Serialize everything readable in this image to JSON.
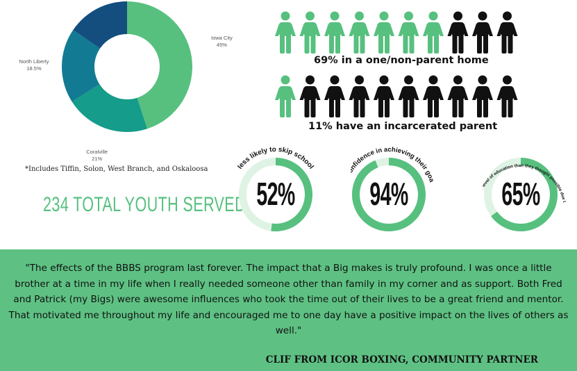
{
  "chart_data": [
    {
      "type": "pie",
      "labels": [
        "Iowa City",
        "Coralville",
        "North Liberty",
        ""
      ],
      "values": [
        45,
        21,
        18.5,
        15.5
      ],
      "value_labels": [
        "45%",
        "21%",
        "18.5%",
        "15.5%"
      ],
      "colors": [
        "#57c07f",
        "#159c8a",
        "#137a93",
        "#134e7f"
      ]
    },
    {
      "type": "pie",
      "title": "less likely to skip school",
      "values": [
        52
      ],
      "value_label": "52%",
      "colors": [
        "#57c07f",
        "#dff3e5"
      ]
    },
    {
      "type": "pie",
      "title": "felt confidence in achieving their goals",
      "values": [
        94
      ],
      "value_label": "94%",
      "colors": [
        "#57c07f",
        "#dff3e5"
      ]
    },
    {
      "type": "pie",
      "title": "achieved a higher level of education than they thought possible due to their Big",
      "values": [
        65
      ],
      "value_label": "65%",
      "colors": [
        "#57c07f",
        "#dff3e5"
      ]
    }
  ],
  "footnote": "*Includes Tiffin, Solon, West Branch, and Oskaloosa",
  "total_served": "234 TOTAL YOUTH SERVED",
  "people_rows": [
    {
      "caption": "69% in a one/non-parent home",
      "green_count": 7,
      "total": 10
    },
    {
      "caption": "11% have an incarcerated parent",
      "green_count": 1,
      "total": 10
    }
  ],
  "quote": "\"The effects of the BBBS program last forever. The impact that a Big makes is truly profound. I was once a little brother at a time in my life when I really needed someone other than family in my corner and as support. Both Fred and Patrick (my Bigs) were awesome influences who took the time out of their lives to be a great friend and mentor. That motivated me throughout my life and encouraged me to one day have a positive impact on the lives of others as well.\"",
  "attribution": "CLIF FROM ICOR BOXING, COMMUNITY PARTNER",
  "colors": {
    "green": "#57c07f",
    "light_green": "#dff3e5",
    "band": "#5ec183",
    "dark": "#111111"
  }
}
